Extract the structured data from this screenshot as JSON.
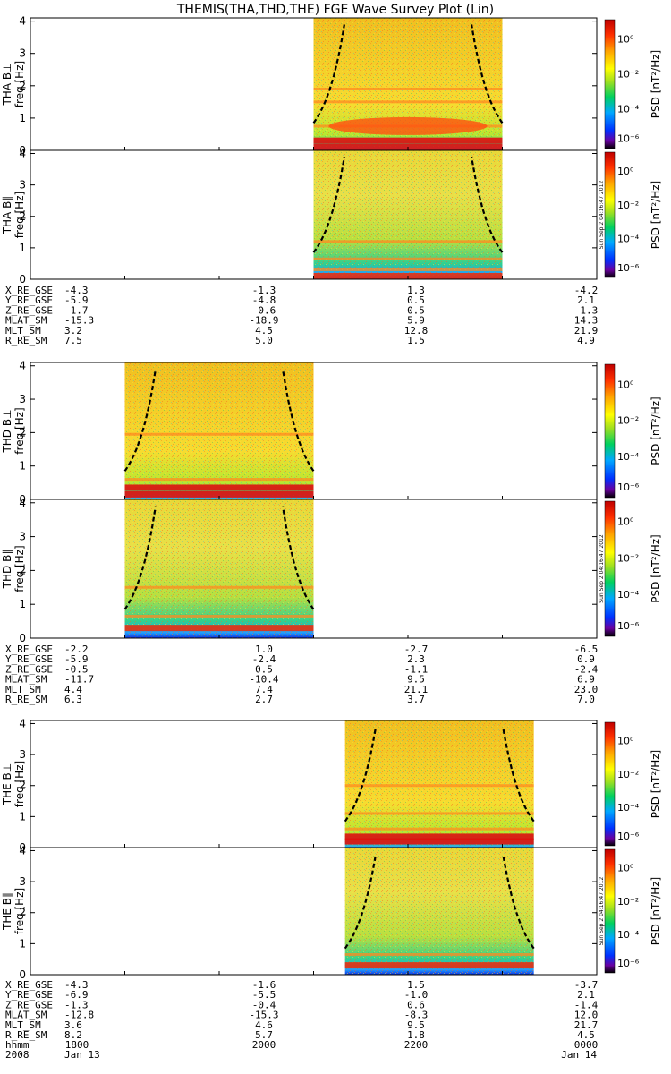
{
  "title": "THEMIS(THA,THD,THE) FGE Wave Survey Plot (Lin)",
  "stamp": "Sun Sep  2 04:16:47 2012",
  "colorbar": {
    "label": "PSD [nT²/Hz]",
    "ticks": [
      "10⁰",
      "10⁻²",
      "10⁻⁴",
      "10⁻⁶"
    ]
  },
  "chart_data": [
    {
      "type": "heatmap",
      "probe": "THA",
      "panels": [
        {
          "component": "THA B⊥",
          "ylabel": "freq [Hz]",
          "yticks": [
            "0",
            "1",
            "2",
            "3",
            "4"
          ],
          "ylim": [
            0,
            4.1
          ],
          "data_start": "2100",
          "data_end": "2300",
          "bands_hz": [
            0.1,
            0.3,
            0.75,
            1.5,
            1.9
          ]
        },
        {
          "component": "THA B∥",
          "ylabel": "freq [Hz]",
          "yticks": [
            "0",
            "1",
            "2",
            "3",
            "4"
          ],
          "ylim": [
            0,
            4.1
          ],
          "data_start": "2100",
          "data_end": "2300",
          "bands_hz": [
            0.1,
            0.3,
            0.65,
            1.2
          ]
        }
      ],
      "ephemeris": [
        {
          "label": "X_RE_GSE",
          "values": [
            "-4.3",
            "-1.3",
            "1.3",
            "-4.2"
          ]
        },
        {
          "label": "Y_RE_GSE",
          "values": [
            "-5.9",
            "-4.8",
            "0.5",
            "2.1"
          ]
        },
        {
          "label": "Z_RE_GSE",
          "values": [
            "-1.7",
            "-0.6",
            "0.5",
            "-1.3"
          ]
        },
        {
          "label": "MLAT_SM",
          "values": [
            "-15.3",
            "-18.9",
            "5.9",
            "14.3"
          ]
        },
        {
          "label": "MLT_SM",
          "values": [
            "3.2",
            "4.5",
            "12.8",
            "21.9"
          ]
        },
        {
          "label": "R_RE_SM",
          "values": [
            "7.5",
            "5.0",
            "1.5",
            "4.9"
          ]
        }
      ]
    },
    {
      "type": "heatmap",
      "probe": "THD",
      "panels": [
        {
          "component": "THD B⊥",
          "ylabel": "freq [Hz]",
          "yticks": [
            "0",
            "1",
            "2",
            "3",
            "4"
          ],
          "ylim": [
            0,
            4.1
          ],
          "data_start": "1900",
          "data_end": "2100",
          "bands_hz": [
            0.15,
            0.35,
            0.6,
            1.95
          ]
        },
        {
          "component": "THD B∥",
          "ylabel": "freq [Hz]",
          "yticks": [
            "0",
            "1",
            "2",
            "3",
            "4"
          ],
          "ylim": [
            0,
            4.1
          ],
          "data_start": "1900",
          "data_end": "2100",
          "bands_hz": [
            0.3,
            0.65,
            1.5
          ]
        }
      ],
      "ephemeris": [
        {
          "label": "X_RE_GSE",
          "values": [
            "-2.2",
            "1.0",
            "-2.7",
            "-6.5"
          ]
        },
        {
          "label": "Y_RE_GSE",
          "values": [
            "-5.9",
            "-2.4",
            "2.3",
            "0.9"
          ]
        },
        {
          "label": "Z_RE_GSE",
          "values": [
            "-0.5",
            "0.5",
            "-1.1",
            "-2.4"
          ]
        },
        {
          "label": "MLAT_SM",
          "values": [
            "-11.7",
            "-10.4",
            "9.5",
            "6.9"
          ]
        },
        {
          "label": "MLT_SM",
          "values": [
            "4.4",
            "7.4",
            "21.1",
            "23.0"
          ]
        },
        {
          "label": "R_RE_SM",
          "values": [
            "6.3",
            "2.7",
            "3.7",
            "7.0"
          ]
        }
      ]
    },
    {
      "type": "heatmap",
      "probe": "THE",
      "panels": [
        {
          "component": "THE B⊥",
          "ylabel": "freq [Hz]",
          "yticks": [
            "0",
            "1",
            "2",
            "3",
            "4"
          ],
          "ylim": [
            0,
            4.1
          ],
          "data_start": "2120",
          "data_end": "2320",
          "bands_hz": [
            0.2,
            0.35,
            0.6,
            1.1,
            2.0
          ]
        },
        {
          "component": "THE B∥",
          "ylabel": "freq [Hz]",
          "yticks": [
            "0",
            "1",
            "2",
            "3",
            "4"
          ],
          "ylim": [
            0,
            4.1
          ],
          "data_start": "2120",
          "data_end": "2320",
          "bands_hz": [
            0.3,
            0.65
          ]
        }
      ],
      "ephemeris": [
        {
          "label": "X_RE_GSE",
          "values": [
            "-4.3",
            "-1.6",
            "1.5",
            "-3.7"
          ]
        },
        {
          "label": "Y_RE_GSE",
          "values": [
            "-6.9",
            "-5.5",
            "-1.0",
            "2.1"
          ]
        },
        {
          "label": "Z_RE_GSE",
          "values": [
            "-1.3",
            "-0.4",
            "0.6",
            "-1.4"
          ]
        },
        {
          "label": "MLAT_SM",
          "values": [
            "-12.8",
            "-15.3",
            "-8.3",
            "12.0"
          ]
        },
        {
          "label": "MLT_SM",
          "values": [
            "3.6",
            "4.6",
            "9.5",
            "21.7"
          ]
        },
        {
          "label": "R_RE_SM",
          "values": [
            "8.2",
            "5.7",
            "1.8",
            "4.5"
          ]
        }
      ],
      "time_axis": {
        "label": "hhmm",
        "ticks": [
          "1800",
          "2000",
          "2200",
          "0000"
        ],
        "year": "2008",
        "start_date": "Jan 13",
        "end_date": "Jan 14"
      }
    }
  ]
}
